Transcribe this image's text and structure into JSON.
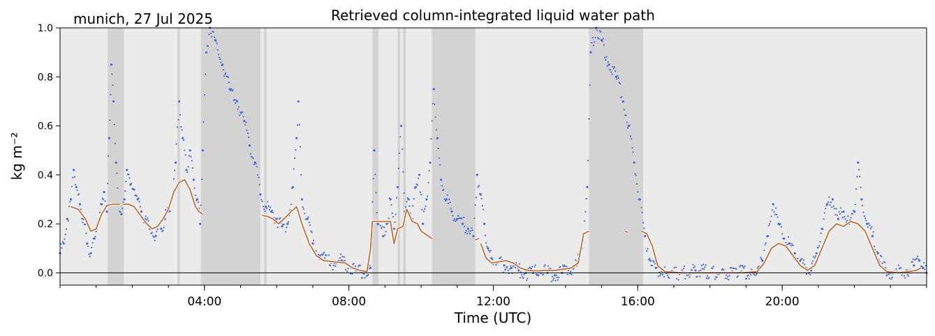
{
  "chart_data": {
    "type": "scatter",
    "title": "Retrieved column-integrated liquid water path",
    "location_label": "munich, 27 Jul 2025",
    "xlabel": "Time (UTC)",
    "ylabel": "kg m⁻²",
    "xlim_hours": [
      0,
      24
    ],
    "ylim": [
      -0.05,
      1.0
    ],
    "x_ticks": [
      {
        "hour": 4,
        "label": "04:00"
      },
      {
        "hour": 8,
        "label": "08:00"
      },
      {
        "hour": 12,
        "label": "12:00"
      },
      {
        "hour": 16,
        "label": "16:00"
      },
      {
        "hour": 20,
        "label": "20:00"
      }
    ],
    "y_ticks": [
      {
        "value": 0.0,
        "label": "0.0"
      },
      {
        "value": 0.2,
        "label": "0.2"
      },
      {
        "value": 0.4,
        "label": "0.4"
      },
      {
        "value": 0.6,
        "label": "0.6"
      },
      {
        "value": 0.8,
        "label": "0.8"
      },
      {
        "value": 1.0,
        "label": "1.0"
      }
    ],
    "zero_line": 0.0,
    "grid": false,
    "colors": {
      "background": "#ebebeb",
      "flag_shading": "#d3d3d3",
      "raw_points": "#4169e1",
      "smoothed_line": "#c46a32"
    },
    "flagged_intervals_hours": [
      [
        1.32,
        1.77
      ],
      [
        3.25,
        3.32
      ],
      [
        3.9,
        5.55
      ],
      [
        5.65,
        5.72
      ],
      [
        8.65,
        8.82
      ],
      [
        9.35,
        9.42
      ],
      [
        9.5,
        9.58
      ],
      [
        10.3,
        11.5
      ],
      [
        14.65,
        16.15
      ]
    ],
    "series": [
      {
        "name": "",
        "style": "dots",
        "points": [
          [
            0.0,
            0.08
          ],
          [
            0.1,
            0.12
          ],
          [
            0.2,
            0.22
          ],
          [
            0.3,
            0.3
          ],
          [
            0.38,
            0.42
          ],
          [
            0.45,
            0.35
          ],
          [
            0.55,
            0.28
          ],
          [
            0.65,
            0.22
          ],
          [
            0.75,
            0.12
          ],
          [
            0.85,
            0.08
          ],
          [
            0.95,
            0.14
          ],
          [
            1.05,
            0.2
          ],
          [
            1.15,
            0.28
          ],
          [
            1.22,
            0.33
          ],
          [
            1.3,
            0.25
          ],
          [
            1.36,
            0.55
          ],
          [
            1.42,
            0.85
          ],
          [
            1.48,
            0.7
          ],
          [
            1.55,
            0.45
          ],
          [
            1.62,
            0.28
          ],
          [
            1.7,
            0.24
          ],
          [
            1.78,
            0.3
          ],
          [
            1.85,
            0.42
          ],
          [
            1.95,
            0.36
          ],
          [
            2.05,
            0.34
          ],
          [
            2.15,
            0.3
          ],
          [
            2.25,
            0.25
          ],
          [
            2.35,
            0.22
          ],
          [
            2.5,
            0.18
          ],
          [
            2.65,
            0.15
          ],
          [
            2.8,
            0.18
          ],
          [
            2.9,
            0.22
          ],
          [
            3.0,
            0.25
          ],
          [
            3.1,
            0.3
          ],
          [
            3.2,
            0.45
          ],
          [
            3.3,
            0.7
          ],
          [
            3.4,
            0.55
          ],
          [
            3.5,
            0.42
          ],
          [
            3.6,
            0.5
          ],
          [
            3.7,
            0.38
          ],
          [
            3.8,
            0.3
          ],
          [
            3.88,
            0.2
          ],
          [
            3.95,
            0.5
          ],
          [
            4.05,
            0.9
          ],
          [
            4.15,
            1.0
          ],
          [
            4.3,
            0.95
          ],
          [
            4.5,
            0.85
          ],
          [
            4.7,
            0.75
          ],
          [
            4.9,
            0.7
          ],
          [
            5.1,
            0.62
          ],
          [
            5.25,
            0.52
          ],
          [
            5.4,
            0.45
          ],
          [
            5.55,
            0.32
          ],
          [
            5.7,
            0.27
          ],
          [
            5.85,
            0.25
          ],
          [
            6.0,
            0.22
          ],
          [
            6.15,
            0.19
          ],
          [
            6.3,
            0.2
          ],
          [
            6.45,
            0.35
          ],
          [
            6.55,
            0.55
          ],
          [
            6.6,
            0.7
          ],
          [
            6.7,
            0.3
          ],
          [
            6.85,
            0.22
          ],
          [
            7.0,
            0.12
          ],
          [
            7.2,
            0.07
          ],
          [
            7.4,
            0.05
          ],
          [
            7.6,
            0.04
          ],
          [
            7.8,
            0.05
          ],
          [
            8.0,
            0.03
          ],
          [
            8.2,
            0.01
          ],
          [
            8.4,
            0.0
          ],
          [
            8.6,
            0.02
          ],
          [
            8.7,
            0.5
          ],
          [
            8.8,
            0.2
          ],
          [
            8.95,
            0.15
          ],
          [
            9.05,
            0.2
          ],
          [
            9.15,
            0.3
          ],
          [
            9.25,
            0.18
          ],
          [
            9.35,
            0.35
          ],
          [
            9.45,
            0.6
          ],
          [
            9.55,
            0.25
          ],
          [
            9.65,
            0.3
          ],
          [
            9.75,
            0.22
          ],
          [
            9.85,
            0.35
          ],
          [
            9.95,
            0.4
          ],
          [
            10.05,
            0.2
          ],
          [
            10.15,
            0.3
          ],
          [
            10.25,
            0.45
          ],
          [
            10.35,
            0.75
          ],
          [
            10.45,
            0.55
          ],
          [
            10.55,
            0.38
          ],
          [
            10.7,
            0.3
          ],
          [
            10.85,
            0.25
          ],
          [
            11.0,
            0.22
          ],
          [
            11.15,
            0.2
          ],
          [
            11.3,
            0.18
          ],
          [
            11.45,
            0.15
          ],
          [
            11.55,
            0.4
          ],
          [
            11.65,
            0.32
          ],
          [
            11.75,
            0.2
          ],
          [
            11.85,
            0.1
          ],
          [
            11.95,
            0.06
          ],
          [
            12.1,
            0.04
          ],
          [
            12.3,
            0.03
          ],
          [
            12.5,
            0.02
          ],
          [
            12.7,
            0.01
          ],
          [
            12.9,
            0.0
          ],
          [
            13.1,
            0.0
          ],
          [
            13.3,
            0.01
          ],
          [
            13.5,
            0.0
          ],
          [
            13.7,
            -0.01
          ],
          [
            13.9,
            0.0
          ],
          [
            14.1,
            0.02
          ],
          [
            14.3,
            0.03
          ],
          [
            14.45,
            0.1
          ],
          [
            14.6,
            0.35
          ],
          [
            14.7,
            0.9
          ],
          [
            14.85,
            1.0
          ],
          [
            15.0,
            0.95
          ],
          [
            15.2,
            0.85
          ],
          [
            15.4,
            0.8
          ],
          [
            15.6,
            0.7
          ],
          [
            15.75,
            0.6
          ],
          [
            15.9,
            0.45
          ],
          [
            16.05,
            0.3
          ],
          [
            16.2,
            0.15
          ],
          [
            16.35,
            0.05
          ],
          [
            16.5,
            0.02
          ],
          [
            16.8,
            0.0
          ],
          [
            17.2,
            0.0
          ],
          [
            17.6,
            0.01
          ],
          [
            18.0,
            0.0
          ],
          [
            18.4,
            0.0
          ],
          [
            18.8,
            0.0
          ],
          [
            19.2,
            0.0
          ],
          [
            19.45,
            0.05
          ],
          [
            19.6,
            0.15
          ],
          [
            19.75,
            0.28
          ],
          [
            19.9,
            0.2
          ],
          [
            20.05,
            0.14
          ],
          [
            20.2,
            0.12
          ],
          [
            20.35,
            0.08
          ],
          [
            20.5,
            0.05
          ],
          [
            20.65,
            0.02
          ],
          [
            20.8,
            0.01
          ],
          [
            20.95,
            0.08
          ],
          [
            21.1,
            0.18
          ],
          [
            21.25,
            0.28
          ],
          [
            21.4,
            0.3
          ],
          [
            21.55,
            0.22
          ],
          [
            21.7,
            0.25
          ],
          [
            21.85,
            0.2
          ],
          [
            22.0,
            0.25
          ],
          [
            22.1,
            0.45
          ],
          [
            22.2,
            0.3
          ],
          [
            22.35,
            0.2
          ],
          [
            22.5,
            0.15
          ],
          [
            22.65,
            0.08
          ],
          [
            22.8,
            0.02
          ],
          [
            23.0,
            0.0
          ],
          [
            23.2,
            0.0
          ],
          [
            23.45,
            0.01
          ],
          [
            23.65,
            0.03
          ],
          [
            23.8,
            0.05
          ],
          [
            23.9,
            0.02
          ],
          [
            24.0,
            0.0
          ]
        ]
      },
      {
        "name": "",
        "style": "line",
        "segments": [
          [
            [
              0.3,
              0.27
            ],
            [
              0.5,
              0.26
            ],
            [
              0.7,
              0.22
            ],
            [
              0.85,
              0.17
            ],
            [
              1.0,
              0.18
            ],
            [
              1.15,
              0.24
            ],
            [
              1.3,
              0.275
            ],
            [
              1.45,
              0.28
            ],
            [
              1.55,
              0.28
            ]
          ],
          [
            [
              1.55,
              0.28
            ],
            [
              1.65,
              0.28
            ]
          ],
          [
            [
              1.75,
              0.28
            ],
            [
              1.9,
              0.28
            ],
            [
              2.05,
              0.27
            ],
            [
              2.2,
              0.24
            ],
            [
              2.4,
              0.2
            ],
            [
              2.55,
              0.18
            ],
            [
              2.7,
              0.19
            ],
            [
              2.85,
              0.22
            ],
            [
              3.0,
              0.26
            ],
            [
              3.15,
              0.33
            ],
            [
              3.3,
              0.37
            ],
            [
              3.45,
              0.38
            ],
            [
              3.6,
              0.34
            ],
            [
              3.75,
              0.27
            ],
            [
              3.85,
              0.25
            ],
            [
              3.95,
              0.24
            ]
          ],
          [
            [
              5.6,
              0.235
            ],
            [
              5.75,
              0.23
            ],
            [
              5.9,
              0.22
            ],
            [
              6.05,
              0.2
            ],
            [
              6.2,
              0.22
            ],
            [
              6.4,
              0.25
            ],
            [
              6.55,
              0.27
            ],
            [
              6.7,
              0.2
            ],
            [
              6.9,
              0.12
            ],
            [
              7.1,
              0.07
            ],
            [
              7.3,
              0.05
            ],
            [
              7.6,
              0.045
            ],
            [
              7.9,
              0.04
            ],
            [
              8.1,
              0.02
            ],
            [
              8.3,
              0.01
            ],
            [
              8.5,
              0.005
            ],
            [
              8.6,
              0.1
            ],
            [
              8.65,
              0.21
            ],
            [
              8.8,
              0.21
            ],
            [
              9.0,
              0.21
            ],
            [
              9.15,
              0.21
            ],
            [
              9.25,
              0.12
            ],
            [
              9.35,
              0.18
            ],
            [
              9.5,
              0.19
            ],
            [
              9.6,
              0.26
            ],
            [
              9.75,
              0.21
            ],
            [
              9.9,
              0.2
            ],
            [
              10.0,
              0.17
            ],
            [
              10.1,
              0.16
            ],
            [
              10.3,
              0.14
            ]
          ],
          [
            [
              11.5,
              0.135
            ],
            [
              11.6,
              0.14
            ]
          ],
          [
            [
              11.65,
              0.12
            ],
            [
              11.8,
              0.06
            ],
            [
              11.95,
              0.04
            ],
            [
              12.15,
              0.045
            ],
            [
              12.35,
              0.05
            ],
            [
              12.55,
              0.04
            ],
            [
              12.75,
              0.02
            ],
            [
              12.95,
              0.01
            ],
            [
              13.2,
              0.008
            ],
            [
              13.45,
              0.01
            ],
            [
              13.7,
              0.01
            ],
            [
              13.95,
              0.015
            ],
            [
              14.15,
              0.02
            ],
            [
              14.35,
              0.04
            ],
            [
              14.5,
              0.16
            ],
            [
              14.65,
              0.17
            ]
          ],
          [
            [
              15.65,
              0.17
            ],
            [
              15.72,
              0.165
            ]
          ],
          [
            [
              16.1,
              0.17
            ],
            [
              16.25,
              0.16
            ],
            [
              16.4,
              0.11
            ],
            [
              16.55,
              0.03
            ],
            [
              16.75,
              0.005
            ],
            [
              17.2,
              0.0
            ],
            [
              17.8,
              0.0
            ],
            [
              18.4,
              0.0
            ],
            [
              18.9,
              0.0
            ],
            [
              19.3,
              0.005
            ],
            [
              19.5,
              0.04
            ],
            [
              19.7,
              0.1
            ],
            [
              19.9,
              0.12
            ],
            [
              20.1,
              0.11
            ],
            [
              20.3,
              0.07
            ],
            [
              20.5,
              0.03
            ],
            [
              20.7,
              0.01
            ],
            [
              20.9,
              0.03
            ],
            [
              21.1,
              0.1
            ],
            [
              21.3,
              0.17
            ],
            [
              21.5,
              0.2
            ],
            [
              21.7,
              0.19
            ],
            [
              21.9,
              0.21
            ],
            [
              22.1,
              0.2
            ],
            [
              22.3,
              0.17
            ],
            [
              22.5,
              0.1
            ],
            [
              22.7,
              0.03
            ],
            [
              22.9,
              0.005
            ],
            [
              23.2,
              0.0
            ],
            [
              23.5,
              0.005
            ],
            [
              23.7,
              0.01
            ],
            [
              23.85,
              0.02
            ]
          ]
        ]
      }
    ]
  }
}
